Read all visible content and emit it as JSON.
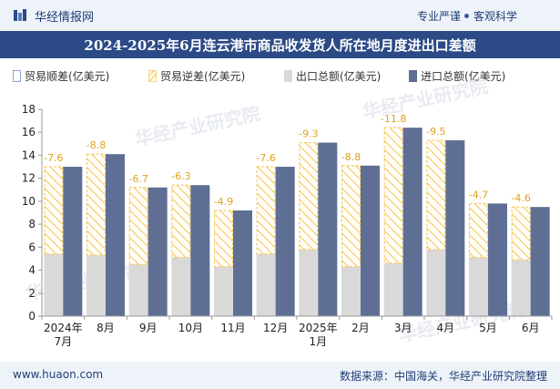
{
  "header": {
    "brand": "华经情报网",
    "tag_left": "专业严谨",
    "tag_right": "客观科学"
  },
  "footer": {
    "site": "www.huaon.com",
    "source": "数据来源：中国海关，华经产业研究院整理"
  },
  "colors": {
    "surplus": "#f5c44f",
    "export": "#d9d9d9",
    "import": "#5f6f94",
    "title_bg": "#2b4a86",
    "topbar_bg": "#eef3fa"
  },
  "chart_data": {
    "type": "bar",
    "title": "2024-2025年6月连云港市商品收发货人所在地月度进出口差额",
    "unit_hint": "亿美元",
    "categories": [
      [
        "2024年",
        "7月"
      ],
      [
        "8月"
      ],
      [
        "9月"
      ],
      [
        "10月"
      ],
      [
        "11月"
      ],
      [
        "12月"
      ],
      [
        "2025年",
        "1月"
      ],
      [
        "2月"
      ],
      [
        "3月"
      ],
      [
        "4月"
      ],
      [
        "5月"
      ],
      [
        "6月"
      ]
    ],
    "series": [
      {
        "name": "贸易顺差(亿美元)",
        "values": [
          0,
          0,
          0,
          0,
          0,
          0,
          0,
          0,
          0,
          0,
          0,
          0
        ]
      },
      {
        "name": "贸易逆差(亿美元)",
        "values": [
          -7.6,
          -8.8,
          -6.7,
          -6.3,
          -4.9,
          -7.6,
          -9.3,
          -8.8,
          -11.8,
          -9.5,
          -4.7,
          -4.6
        ]
      },
      {
        "name": "出口总额(亿美元)",
        "values": [
          5.4,
          5.3,
          4.5,
          5.1,
          4.3,
          5.4,
          5.8,
          4.3,
          4.6,
          5.8,
          5.1,
          4.9
        ]
      },
      {
        "name": "进口总额(亿美元)",
        "values": [
          13.0,
          14.1,
          11.2,
          11.4,
          9.2,
          13.0,
          15.1,
          13.1,
          16.4,
          15.3,
          9.8,
          9.5
        ]
      }
    ],
    "data_labels": [
      "-7.6",
      "-8.8",
      "-6.7",
      "-6.3",
      "-4.9",
      "-7.6",
      "-9.3",
      "-8.8",
      "-11.8",
      "-9.5",
      "-4.7",
      "-4.6"
    ],
    "yticks": [
      "0",
      "2",
      "4",
      "6",
      "8",
      "10",
      "12",
      "14",
      "16",
      "18"
    ],
    "ylim": [
      0,
      18
    ],
    "grid": false,
    "legend_position": "top",
    "watermark": "华经产业研究院"
  }
}
